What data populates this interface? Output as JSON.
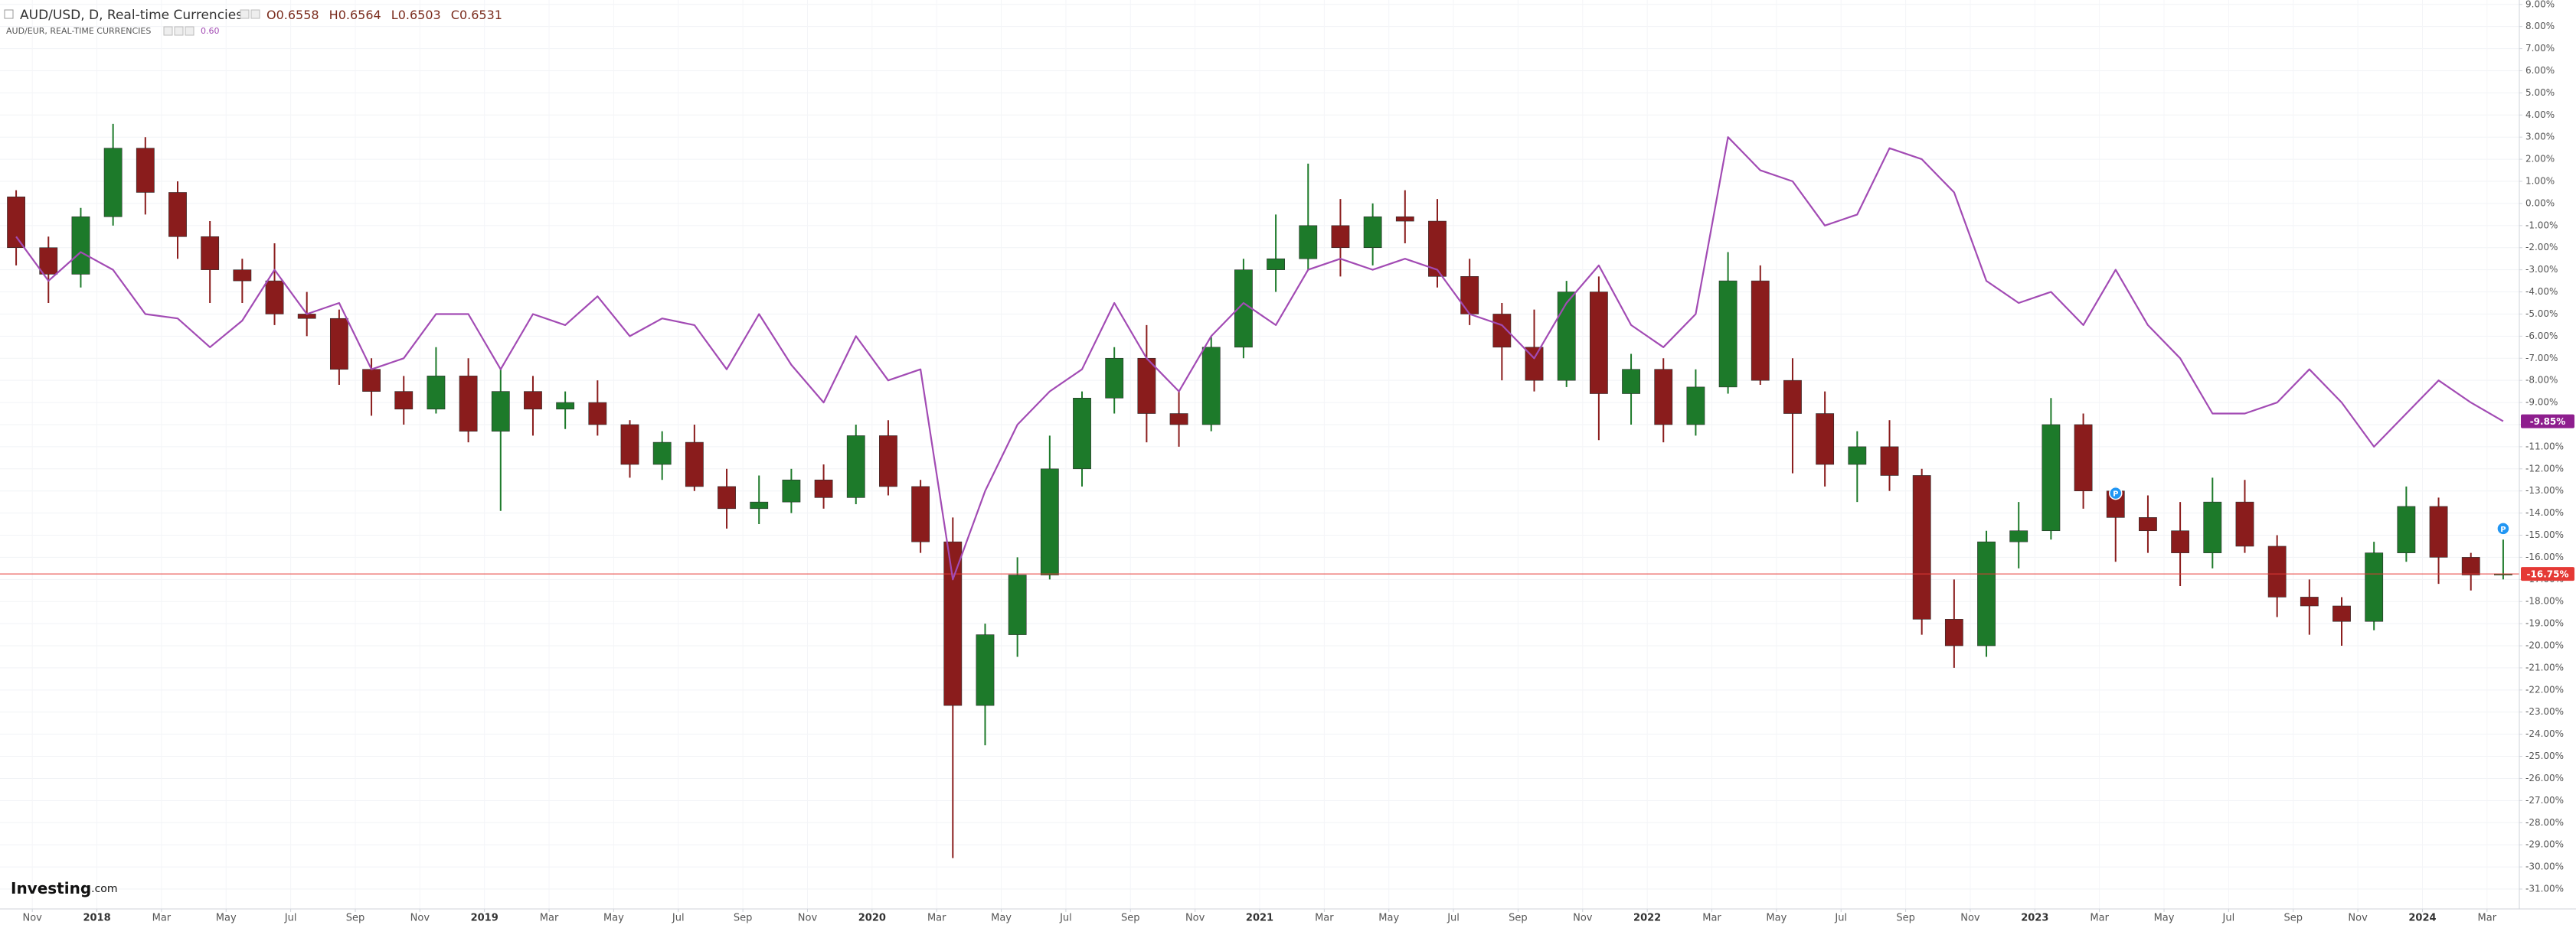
{
  "chart_data": {
    "type": "candlestick",
    "legend": {
      "ohlc": [
        "O0.6558",
        "H0.6564",
        "L0.6503",
        "C0.6531"
      ]
    },
    "logo": {
      "brand": "Investing",
      "suffix": ".com"
    },
    "grid": true,
    "ylim": [
      -31.9,
      9.2
    ],
    "xlim": [
      "2017-10",
      "2024-04"
    ],
    "yticks": [
      {
        "value": 9,
        "label": "9.00%"
      },
      {
        "value": 8,
        "label": "8.00%"
      },
      {
        "value": 7,
        "label": "7.00%"
      },
      {
        "value": 6,
        "label": "6.00%"
      },
      {
        "value": 5,
        "label": "5.00%"
      },
      {
        "value": 4,
        "label": "4.00%"
      },
      {
        "value": 3,
        "label": "3.00%"
      },
      {
        "value": 2,
        "label": "2.00%"
      },
      {
        "value": 1,
        "label": "1.00%"
      },
      {
        "value": 0,
        "label": "0.00%"
      },
      {
        "value": -1,
        "label": "-1.00%"
      },
      {
        "value": -2,
        "label": "-2.00%"
      },
      {
        "value": -3,
        "label": "-3.00%"
      },
      {
        "value": -4,
        "label": "-4.00%"
      },
      {
        "value": -5,
        "label": "-5.00%"
      },
      {
        "value": -6,
        "label": "-6.00%"
      },
      {
        "value": -7,
        "label": "-7.00%"
      },
      {
        "value": -8,
        "label": "-8.00%"
      },
      {
        "value": -9,
        "label": "-9.00%"
      },
      {
        "value": -10,
        "label": "-10.00%"
      },
      {
        "value": -11,
        "label": "-11.00%"
      },
      {
        "value": -12,
        "label": "-12.00%"
      },
      {
        "value": -13,
        "label": "-13.00%"
      },
      {
        "value": -14,
        "label": "-14.00%"
      },
      {
        "value": -15,
        "label": "-15.00%"
      },
      {
        "value": -16,
        "label": "-16.00%"
      },
      {
        "value": -17,
        "label": "-17.00%"
      },
      {
        "value": -18,
        "label": "-18.00%"
      },
      {
        "value": -19,
        "label": "-19.00%"
      },
      {
        "value": -20,
        "label": "-20.00%"
      },
      {
        "value": -21,
        "label": "-21.00%"
      },
      {
        "value": -22,
        "label": "-22.00%"
      },
      {
        "value": -23,
        "label": "-23.00%"
      },
      {
        "value": -24,
        "label": "-24.00%"
      },
      {
        "value": -25,
        "label": "-25.00%"
      },
      {
        "value": -26,
        "label": "-26.00%"
      },
      {
        "value": -27,
        "label": "-27.00%"
      },
      {
        "value": -28,
        "label": "-28.00%"
      },
      {
        "value": -29,
        "label": "-29.00%"
      },
      {
        "value": -30,
        "label": "-30.00%"
      },
      {
        "value": -31,
        "label": "-31.00%"
      }
    ],
    "xticks": [
      {
        "value": "2017-11",
        "label": "Nov"
      },
      {
        "value": "2018-01",
        "label": "2018"
      },
      {
        "value": "2018-03",
        "label": "Mar"
      },
      {
        "value": "2018-05",
        "label": "May"
      },
      {
        "value": "2018-07",
        "label": "Jul"
      },
      {
        "value": "2018-09",
        "label": "Sep"
      },
      {
        "value": "2018-11",
        "label": "Nov"
      },
      {
        "value": "2019-01",
        "label": "2019"
      },
      {
        "value": "2019-03",
        "label": "Mar"
      },
      {
        "value": "2019-05",
        "label": "May"
      },
      {
        "value": "2019-07",
        "label": "Jul"
      },
      {
        "value": "2019-09",
        "label": "Sep"
      },
      {
        "value": "2019-11",
        "label": "Nov"
      },
      {
        "value": "2020-01",
        "label": "2020"
      },
      {
        "value": "2020-03",
        "label": "Mar"
      },
      {
        "value": "2020-05",
        "label": "May"
      },
      {
        "value": "2020-07",
        "label": "Jul"
      },
      {
        "value": "2020-09",
        "label": "Sep"
      },
      {
        "value": "2020-11",
        "label": "Nov"
      },
      {
        "value": "2021-01",
        "label": "2021"
      },
      {
        "value": "2021-03",
        "label": "Mar"
      },
      {
        "value": "2021-05",
        "label": "May"
      },
      {
        "value": "2021-07",
        "label": "Jul"
      },
      {
        "value": "2021-09",
        "label": "Sep"
      },
      {
        "value": "2021-11",
        "label": "Nov"
      },
      {
        "value": "2022-01",
        "label": "2022"
      },
      {
        "value": "2022-03",
        "label": "Mar"
      },
      {
        "value": "2022-05",
        "label": "May"
      },
      {
        "value": "2022-07",
        "label": "Jul"
      },
      {
        "value": "2022-09",
        "label": "Sep"
      },
      {
        "value": "2022-11",
        "label": "Nov"
      },
      {
        "value": "2023-01",
        "label": "2023"
      },
      {
        "value": "2023-03",
        "label": "Mar"
      },
      {
        "value": "2023-05",
        "label": "May"
      },
      {
        "value": "2023-07",
        "label": "Jul"
      },
      {
        "value": "2023-09",
        "label": "Sep"
      },
      {
        "value": "2023-11",
        "label": "Nov"
      },
      {
        "value": "2024-01",
        "label": "2024"
      },
      {
        "value": "2024-03",
        "label": "Mar"
      }
    ],
    "x": [
      "2017-10",
      "2017-11",
      "2017-12",
      "2018-01",
      "2018-02",
      "2018-03",
      "2018-04",
      "2018-05",
      "2018-06",
      "2018-07",
      "2018-08",
      "2018-09",
      "2018-10",
      "2018-11",
      "2018-12",
      "2019-01",
      "2019-02",
      "2019-03",
      "2019-04",
      "2019-05",
      "2019-06",
      "2019-07",
      "2019-08",
      "2019-09",
      "2019-10",
      "2019-11",
      "2019-12",
      "2020-01",
      "2020-02",
      "2020-03",
      "2020-04",
      "2020-05",
      "2020-06",
      "2020-07",
      "2020-08",
      "2020-09",
      "2020-10",
      "2020-11",
      "2020-12",
      "2021-01",
      "2021-02",
      "2021-03",
      "2021-04",
      "2021-05",
      "2021-06",
      "2021-07",
      "2021-08",
      "2021-09",
      "2021-10",
      "2021-11",
      "2021-12",
      "2022-01",
      "2022-02",
      "2022-03",
      "2022-04",
      "2022-05",
      "2022-06",
      "2022-07",
      "2022-08",
      "2022-09",
      "2022-10",
      "2022-11",
      "2022-12",
      "2023-01",
      "2023-02",
      "2023-03",
      "2023-04",
      "2023-05",
      "2023-06",
      "2023-07",
      "2023-08",
      "2023-09",
      "2023-10",
      "2023-11",
      "2023-12",
      "2024-01",
      "2024-02",
      "2024-03"
    ],
    "series": [
      {
        "name": "AUD/USD, D, Real-time Currencies",
        "type": "candlestick",
        "color_up": "#1d7a2a",
        "color_down": "#8a1c1c",
        "last_color": "#e53935",
        "last_label": "-16.75%",
        "open": [
          0.3,
          -2,
          -3.2,
          -0.6,
          2.5,
          0.5,
          -1.5,
          -3,
          -3.5,
          -5,
          -5.2,
          -7.5,
          -8.5,
          -9.3,
          -7.8,
          -10.3,
          -8.5,
          -9.3,
          -9,
          -10,
          -11.8,
          -10.8,
          -12.8,
          -13.8,
          -13.5,
          -12.5,
          -13.3,
          -10.5,
          -12.8,
          -15.3,
          -22.7,
          -19.5,
          -16.8,
          -12,
          -8.8,
          -7,
          -9.5,
          -10,
          -6.5,
          -3,
          -2.5,
          -1,
          -2,
          -0.6,
          -0.8,
          -3.3,
          -5,
          -6.5,
          -8,
          -4,
          -8.6,
          -7.5,
          -10,
          -8.3,
          -3.5,
          -8,
          -9.5,
          -11.8,
          -11,
          -12.3,
          -18.8,
          -20,
          -15.3,
          -14.8,
          -10,
          -13,
          -14.2,
          -14.8,
          -15.8,
          -13.5,
          -15.5,
          -17.8,
          -18.2,
          -18.9,
          -15.8,
          -13.7,
          -16,
          -16.8
        ],
        "high": [
          0.6,
          -1.5,
          -0.2,
          3.6,
          3.0,
          1.0,
          -0.8,
          -2.5,
          -1.8,
          -4,
          -4.8,
          -7,
          -7.8,
          -6.5,
          -7,
          -7.5,
          -7.8,
          -8.5,
          -8,
          -9.8,
          -10.3,
          -10,
          -12,
          -12.3,
          -12,
          -11.8,
          -10.0,
          -9.8,
          -12.5,
          -14.2,
          -19.0,
          -16,
          -10.5,
          -8.5,
          -6.5,
          -5.5,
          -8.5,
          -6.0,
          -2.5,
          -0.5,
          1.8,
          0.2,
          0,
          0.6,
          0.2,
          -2.5,
          -4.5,
          -4.8,
          -3.5,
          -3.3,
          -6.8,
          -7,
          -7.5,
          -2.2,
          -2.8,
          -7,
          -8.5,
          -10.3,
          -9.8,
          -12,
          -17,
          -14.8,
          -13.5,
          -8.8,
          -9.5,
          -12.8,
          -13.2,
          -13.5,
          -12.4,
          -12.5,
          -15,
          -17,
          -17.8,
          -15.3,
          -12.8,
          -13.3,
          -15.8,
          -15.2
        ],
        "low": [
          -2.8,
          -4.5,
          -3.8,
          -1.0,
          -0.5,
          -2.5,
          -4.5,
          -4.5,
          -5.5,
          -6,
          -8.2,
          -9.6,
          -10,
          -9.5,
          -10.8,
          -13.9,
          -10.5,
          -10.2,
          -10.5,
          -12.4,
          -12.5,
          -13,
          -14.7,
          -14.5,
          -14,
          -13.8,
          -13.6,
          -13.2,
          -15.8,
          -29.6,
          -24.5,
          -20.5,
          -17,
          -12.8,
          -9.5,
          -10.8,
          -11,
          -10.3,
          -7,
          -4,
          -3,
          -3.3,
          -2.8,
          -1.8,
          -3.8,
          -5.5,
          -8,
          -8.5,
          -8.3,
          -10.7,
          -10,
          -10.8,
          -10.5,
          -8.6,
          -8.2,
          -12.2,
          -12.8,
          -13.5,
          -13,
          -19.5,
          -21.0,
          -20.5,
          -16.5,
          -15.2,
          -13.8,
          -16.2,
          -15.8,
          -17.3,
          -16.5,
          -15.8,
          -18.7,
          -19.5,
          -20.0,
          -19.3,
          -16.2,
          -17.2,
          -17.5,
          -17.0
        ],
        "close": [
          -2.0,
          -3.2,
          -0.6,
          2.5,
          0.5,
          -1.5,
          -3.0,
          -3.5,
          -5.0,
          -5.2,
          -7.5,
          -8.5,
          -9.3,
          -7.8,
          -10.3,
          -8.5,
          -9.3,
          -9.0,
          -10.0,
          -11.8,
          -10.8,
          -12.8,
          -13.8,
          -13.5,
          -12.5,
          -13.3,
          -10.5,
          -12.8,
          -15.3,
          -22.7,
          -19.5,
          -16.8,
          -12.0,
          -8.8,
          -7.0,
          -9.5,
          -10.0,
          -6.5,
          -3.0,
          -2.5,
          -1.0,
          -2.0,
          -0.6,
          -0.8,
          -3.3,
          -5.0,
          -6.5,
          -8.0,
          -4.0,
          -8.6,
          -7.5,
          -10.0,
          -8.3,
          -3.5,
          -8.0,
          -9.5,
          -11.8,
          -11.0,
          -12.3,
          -18.8,
          -20.0,
          -15.3,
          -14.8,
          -10.0,
          -13.0,
          -14.2,
          -14.8,
          -15.8,
          -13.5,
          -15.5,
          -17.8,
          -18.2,
          -18.9,
          -15.8,
          -13.7,
          -16.0,
          -16.8,
          -16.75
        ]
      },
      {
        "name": "AUD/EUR, REAL-TIME CURRENCIES",
        "type": "line",
        "color": "#a24bb4",
        "last_color": "#8e1e8e",
        "legend_value": "0.60",
        "last_label": "-9.85%",
        "values": [
          -1.5,
          -3.5,
          -2.2,
          -3.0,
          -5.0,
          -5.2,
          -6.5,
          -5.3,
          -3.0,
          -5.0,
          -4.5,
          -7.5,
          -7.0,
          -5.0,
          -5.0,
          -7.5,
          -5.0,
          -5.5,
          -4.2,
          -6.0,
          -5.2,
          -5.5,
          -7.5,
          -5.0,
          -7.3,
          -9.0,
          -6.0,
          -8.0,
          -7.5,
          -17.0,
          -13.0,
          -10.0,
          -8.5,
          -7.5,
          -4.5,
          -7.0,
          -8.5,
          -6.0,
          -4.5,
          -5.5,
          -3.0,
          -2.5,
          -3.0,
          -2.5,
          -3.0,
          -5.0,
          -5.5,
          -7.0,
          -4.5,
          -2.8,
          -5.5,
          -6.5,
          -5.0,
          3.0,
          1.5,
          1.0,
          -1.0,
          -0.5,
          2.5,
          2.0,
          0.5,
          -3.5,
          -4.5,
          -4.0,
          -5.5,
          -3.0,
          -5.5,
          -7.0,
          -9.5,
          -9.5,
          -9.0,
          -7.5,
          -9.0,
          -11.0,
          -9.5,
          -8.0,
          -9.0,
          -9.85
        ]
      }
    ],
    "markers": [
      {
        "x": "2023-03",
        "y": -13.1,
        "label": "P"
      },
      {
        "x": "2024-03",
        "y": -14.7,
        "label": "P"
      }
    ]
  }
}
